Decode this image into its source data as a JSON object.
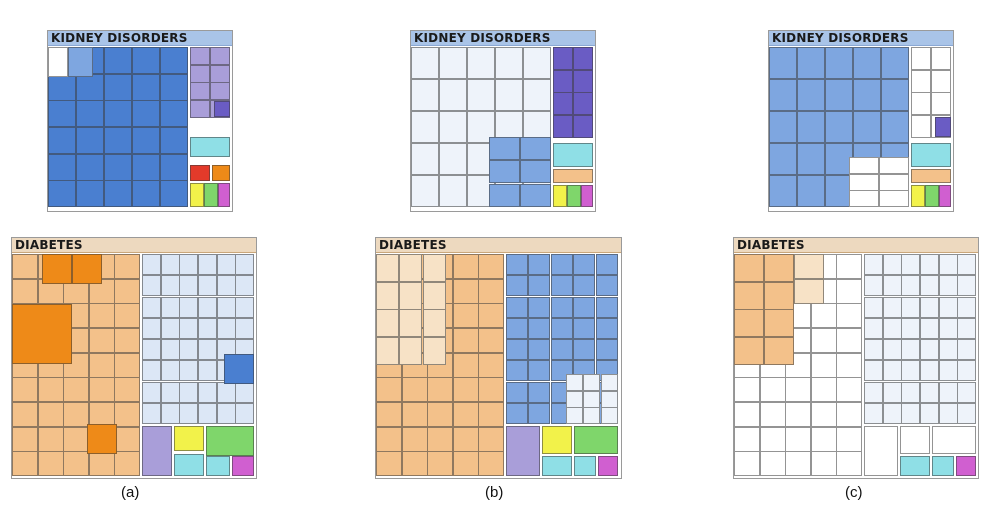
{
  "panels": [
    {
      "id": "a",
      "caption": "(a)",
      "kidney_title": "KIDNEY DISORDERS",
      "diabetes_title": "DIABETES"
    },
    {
      "id": "b",
      "caption": "(b)",
      "kidney_title": "KIDNEY DISORDERS",
      "diabetes_title": "DIABETES"
    },
    {
      "id": "c",
      "caption": "(c)",
      "kidney_title": "KIDNEY DISORDERS",
      "diabetes_title": "DIABETES"
    }
  ],
  "colors": {
    "blue_dark": "#4a7fd0",
    "blue_mid": "#7ea6e0",
    "blue_light": "#dce7f6",
    "blue_pale": "#eef3fa",
    "orange_dark": "#ee8a18",
    "orange_mid": "#f3c18a",
    "orange_light": "#f7e2c6",
    "purple": "#a99ed9",
    "purple_dark": "#6a5cc4",
    "cyan": "#8fdfe6",
    "green": "#7fd66b",
    "yellow": "#f2f24a",
    "magenta": "#d05fd0",
    "red": "#e33a2a"
  }
}
